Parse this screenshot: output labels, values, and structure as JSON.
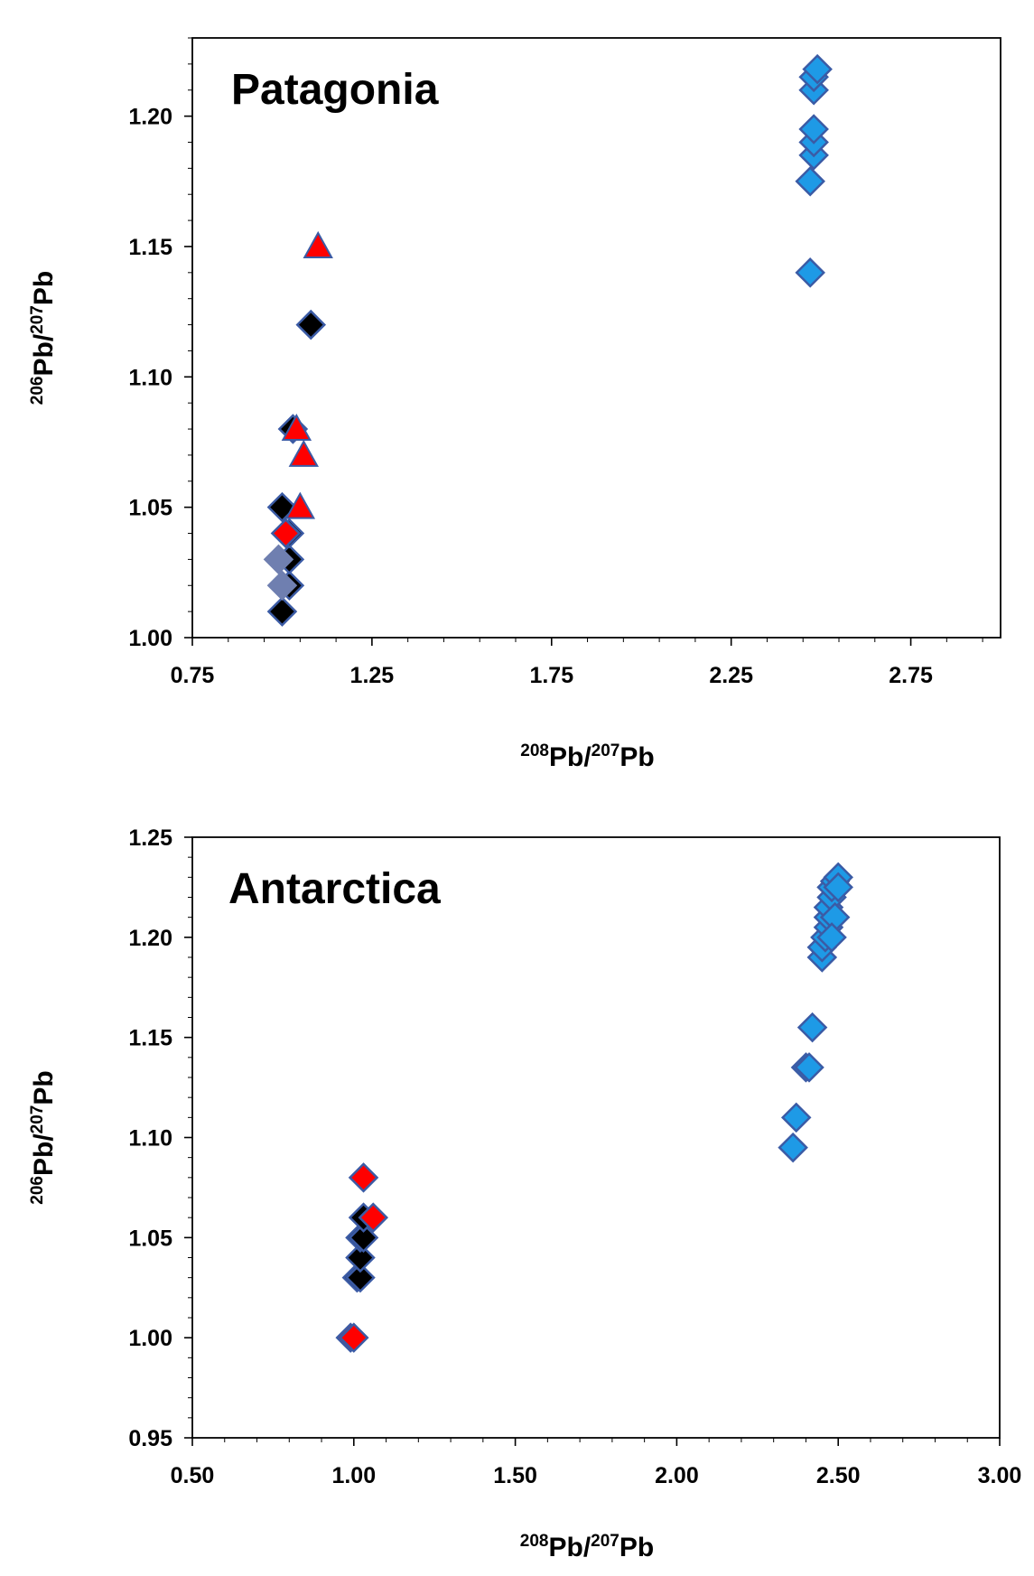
{
  "chart_data": [
    {
      "type": "scatter",
      "title": "Patagonia",
      "xlabel_parts": [
        "208",
        "Pb/",
        "207",
        "Pb"
      ],
      "ylabel_parts": [
        "206",
        "Pb/",
        "207",
        "Pb"
      ],
      "xlim": [
        0.75,
        3.0
      ],
      "ylim": [
        1.0,
        1.23
      ],
      "xticks": [
        "0.75",
        "1.25",
        "1.75",
        "2.25",
        "2.75"
      ],
      "xtick_values": [
        0.75,
        1.25,
        1.75,
        2.25,
        2.75
      ],
      "yticks": [
        "1.00",
        "1.05",
        "1.10",
        "1.15",
        "1.20"
      ],
      "ytick_values": [
        1.0,
        1.05,
        1.1,
        1.15,
        1.2
      ],
      "grid": false,
      "series": [
        {
          "marker": "diamond",
          "color": "#000000",
          "edge": "#3b5ba5",
          "points": [
            [
              1.0,
              1.01
            ],
            [
              1.02,
              1.02
            ],
            [
              1.02,
              1.03
            ],
            [
              1.02,
              1.04
            ],
            [
              1.0,
              1.05
            ],
            [
              1.03,
              1.08
            ],
            [
              1.08,
              1.12
            ]
          ]
        },
        {
          "marker": "diamond",
          "color": "#6f7fb0",
          "edge": "#6f7fb0",
          "points": [
            [
              0.99,
              1.03
            ],
            [
              1.0,
              1.02
            ]
          ]
        },
        {
          "marker": "diamond",
          "color": "#ff0000",
          "edge": "#3b5ba5",
          "points": [
            [
              1.01,
              1.04
            ]
          ]
        },
        {
          "marker": "triangle",
          "color": "#ff0000",
          "edge": "#3b5ba5",
          "points": [
            [
              1.05,
              1.05
            ],
            [
              1.06,
              1.07
            ],
            [
              1.04,
              1.08
            ],
            [
              1.1,
              1.15
            ]
          ]
        },
        {
          "marker": "diamond",
          "color": "#1e9ae6",
          "edge": "#3b5ba5",
          "points": [
            [
              2.47,
              1.14
            ],
            [
              2.47,
              1.175
            ],
            [
              2.48,
              1.185
            ],
            [
              2.48,
              1.19
            ],
            [
              2.48,
              1.195
            ],
            [
              2.48,
              1.21
            ],
            [
              2.48,
              1.215
            ],
            [
              2.49,
              1.218
            ]
          ]
        }
      ]
    },
    {
      "type": "scatter",
      "title": "Antarctica",
      "xlabel_parts": [
        "208",
        "Pb/",
        "207",
        "Pb"
      ],
      "ylabel_parts": [
        "206",
        "Pb/",
        "207",
        "Pb"
      ],
      "xlim": [
        0.5,
        3.0
      ],
      "ylim": [
        0.95,
        1.25
      ],
      "xticks": [
        "0.50",
        "1.00",
        "1.50",
        "2.00",
        "2.50",
        "3.00"
      ],
      "xtick_values": [
        0.5,
        1.0,
        1.5,
        2.0,
        2.5,
        3.0
      ],
      "yticks": [
        "0.95",
        "1.00",
        "1.05",
        "1.10",
        "1.15",
        "1.20",
        "1.25"
      ],
      "ytick_values": [
        0.95,
        1.0,
        1.05,
        1.1,
        1.15,
        1.2,
        1.25
      ],
      "grid": false,
      "series": [
        {
          "marker": "diamond",
          "color": "#000000",
          "edge": "#3b5ba5",
          "points": [
            [
              1.01,
              1.03
            ],
            [
              1.02,
              1.03
            ],
            [
              1.02,
              1.04
            ],
            [
              1.02,
              1.05
            ],
            [
              1.03,
              1.05
            ],
            [
              1.03,
              1.06
            ]
          ]
        },
        {
          "marker": "diamond",
          "color": "#ff0000",
          "edge": "#3b5ba5",
          "points": [
            [
              0.99,
              1.0
            ],
            [
              1.0,
              1.0
            ],
            [
              1.03,
              1.08
            ],
            [
              1.06,
              1.06
            ]
          ]
        },
        {
          "marker": "diamond",
          "color": "#1e9ae6",
          "edge": "#3b5ba5",
          "points": [
            [
              2.36,
              1.095
            ],
            [
              2.37,
              1.11
            ],
            [
              2.4,
              1.135
            ],
            [
              2.41,
              1.135
            ],
            [
              2.42,
              1.155
            ],
            [
              2.45,
              1.19
            ],
            [
              2.45,
              1.195
            ],
            [
              2.46,
              1.2
            ],
            [
              2.47,
              1.205
            ],
            [
              2.47,
              1.21
            ],
            [
              2.47,
              1.215
            ],
            [
              2.48,
              1.22
            ],
            [
              2.48,
              1.225
            ],
            [
              2.49,
              1.228
            ],
            [
              2.5,
              1.23
            ],
            [
              2.5,
              1.225
            ],
            [
              2.49,
              1.21
            ],
            [
              2.48,
              1.2
            ]
          ]
        }
      ]
    }
  ]
}
